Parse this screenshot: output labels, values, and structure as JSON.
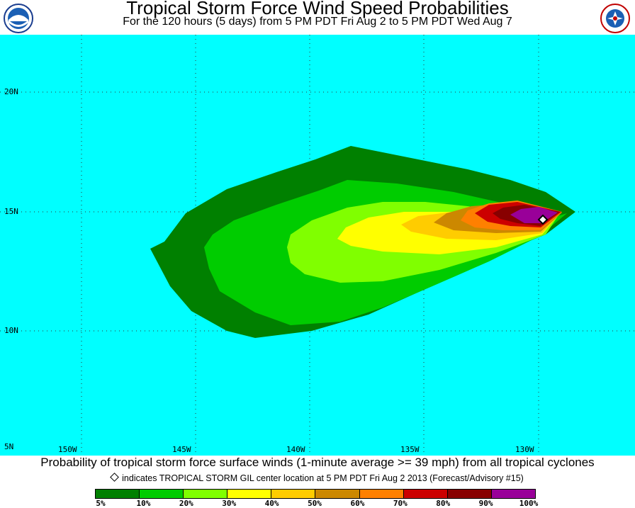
{
  "header": {
    "title": "Tropical Storm Force Wind Speed Probabilities",
    "subtitle": "For the 120 hours (5 days) from 5 PM PDT Fri Aug 2 to 5 PM PDT Wed Aug 7"
  },
  "logos": {
    "left": "noaa-logo",
    "right": "nws-logo"
  },
  "map": {
    "background_color": "#00ffff",
    "lat_labels": [
      "20N",
      "15N",
      "10N",
      "5N"
    ],
    "lon_labels": [
      "150W",
      "145W",
      "140W",
      "135W",
      "130W"
    ],
    "storm_center": {
      "lat": 14.7,
      "lon": -129.6
    }
  },
  "caption": "Probability of tropical storm force surface winds (1-minute average >= 39 mph) from all tropical cyclones",
  "legend": {
    "note": "indicates TROPICAL STORM GIL center location at 5 PM PDT Fri Aug 2 2013 (Forecast/Advisory #15)",
    "labels": [
      "5%",
      "10%",
      "20%",
      "30%",
      "40%",
      "50%",
      "60%",
      "70%",
      "80%",
      "90%",
      "100%"
    ],
    "colors": [
      "#008000",
      "#00cc00",
      "#80ff00",
      "#ffff00",
      "#ffcc00",
      "#cc8800",
      "#ff8000",
      "#cc0000",
      "#880000",
      "#990099"
    ]
  }
}
